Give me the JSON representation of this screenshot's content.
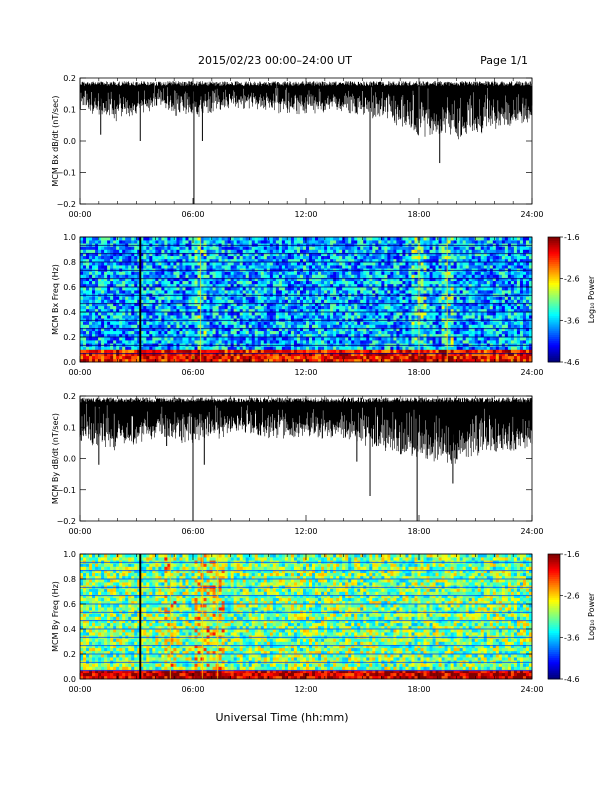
{
  "header": {
    "date_range": "2015/02/23  00:00–24:00 UT",
    "page": "Page 1/1"
  },
  "xaxis": {
    "label": "Universal Time (hh:mm)",
    "tick_labels": [
      "00:00",
      "06:00",
      "12:00",
      "18:00",
      "24:00"
    ]
  },
  "colorbar": {
    "label": "Log₁₀ Power",
    "tick_labels": [
      "-1.6",
      "-2.6",
      "-3.6",
      "-4.6"
    ]
  },
  "chart_data": [
    {
      "type": "line",
      "ylabel": "MCM Bx dB/dt (nT/sec)",
      "x_unit": "hours UT",
      "xlim": [
        0,
        24
      ],
      "ylim": [
        -0.2,
        0.2
      ],
      "ytick_labels": [
        "0.2",
        "0.1",
        "0.0",
        "−0.1",
        "−0.2"
      ],
      "upper_envelope_approx": 0.19,
      "lower_envelope_approx": {
        "hours": [
          0,
          2,
          4,
          6,
          8,
          10,
          12,
          14,
          16,
          18,
          20,
          22,
          24
        ],
        "values": [
          0.13,
          0.1,
          0.14,
          0.11,
          0.14,
          0.13,
          0.12,
          0.13,
          0.1,
          0.05,
          0.04,
          0.07,
          0.1
        ]
      },
      "spikes": [
        {
          "x": 1.1,
          "y": 0.02
        },
        {
          "x": 3.2,
          "y": 0.0
        },
        {
          "x": 5.1,
          "y": 0.08
        },
        {
          "x": 6.05,
          "y": -0.2
        },
        {
          "x": 6.5,
          "y": 0.0
        },
        {
          "x": 15.4,
          "y": -0.2
        },
        {
          "x": 19.1,
          "y": -0.07
        }
      ]
    },
    {
      "type": "heatmap",
      "ylabel": "MCM Bx Freq (Hz)",
      "x_unit": "hours UT",
      "xlim": [
        0,
        24
      ],
      "ylim": [
        0,
        1.0
      ],
      "ytick_labels": [
        "1.0",
        "0.8",
        "0.6",
        "0.4",
        "0.2",
        "0.0"
      ],
      "color_range": [
        -4.6,
        -1.6
      ],
      "z_unit": "log10 power",
      "background_level": -3.7,
      "harmonic_lines_hz": [
        0.067,
        0.133,
        0.2,
        0.267,
        0.333,
        0.4,
        0.467,
        0.533,
        0.6,
        0.667,
        0.733,
        0.8,
        0.867,
        0.933,
        1.0
      ],
      "data_gaps_hours": [
        3.2
      ],
      "broadband_events_hours": [
        6.4,
        18.0,
        19.5
      ],
      "low_frequency_enhancement": {
        "freq_max_hz": 0.1,
        "level": -2.2
      }
    },
    {
      "type": "line",
      "ylabel": "MCM By dB/dt (nT/sec)",
      "x_unit": "hours UT",
      "xlim": [
        0,
        24
      ],
      "ylim": [
        -0.2,
        0.2
      ],
      "ytick_labels": [
        "0.2",
        "0.1",
        "0.0",
        "−0.1",
        "−0.2"
      ],
      "upper_envelope_approx": 0.195,
      "lower_envelope_approx": {
        "hours": [
          0,
          2,
          4,
          6,
          8,
          10,
          12,
          14,
          16,
          18,
          20,
          22,
          24
        ],
        "values": [
          0.09,
          0.06,
          0.1,
          0.08,
          0.11,
          0.1,
          0.1,
          0.1,
          0.06,
          0.03,
          0.02,
          0.05,
          0.07
        ]
      },
      "spikes": [
        {
          "x": 1.0,
          "y": -0.02
        },
        {
          "x": 4.6,
          "y": 0.04
        },
        {
          "x": 6.0,
          "y": -0.2
        },
        {
          "x": 6.6,
          "y": -0.02
        },
        {
          "x": 14.7,
          "y": -0.01
        },
        {
          "x": 15.4,
          "y": -0.12
        },
        {
          "x": 17.9,
          "y": -0.2
        },
        {
          "x": 19.8,
          "y": -0.08
        }
      ]
    },
    {
      "type": "heatmap",
      "ylabel": "MCM By Freq (Hz)",
      "x_unit": "hours UT",
      "xlim": [
        0,
        24
      ],
      "ylim": [
        0,
        1.0
      ],
      "ytick_labels": [
        "1.0",
        "0.8",
        "0.6",
        "0.4",
        "0.2",
        "0.0"
      ],
      "color_range": [
        -4.6,
        -1.6
      ],
      "z_unit": "log10 power",
      "background_level": -3.1,
      "harmonic_lines_hz": [
        0.067,
        0.133,
        0.2,
        0.267,
        0.333,
        0.4,
        0.467,
        0.533,
        0.6,
        0.667,
        0.733,
        0.8,
        0.867,
        0.933,
        1.0
      ],
      "data_gaps_hours": [
        3.2
      ],
      "broadband_events_hours": [
        4.8,
        6.5,
        7.3
      ],
      "low_frequency_enhancement": {
        "freq_max_hz": 0.08,
        "level": -2.0
      }
    }
  ]
}
